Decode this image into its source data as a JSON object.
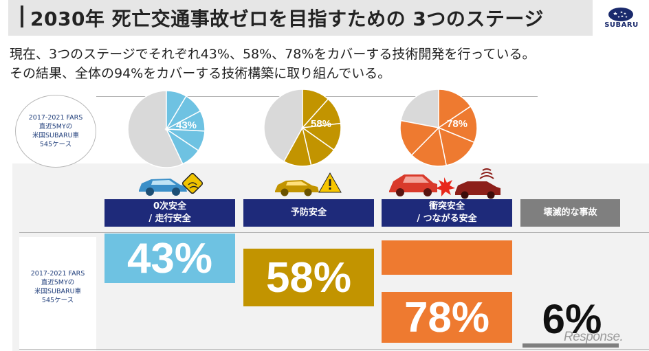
{
  "header": {
    "title": "2030年 死亡交通事故ゼロを目指すための 3つのステージ",
    "logo_text": "SUBARU"
  },
  "intro": {
    "line1": "現在、3つのステージでそれぞれ43%、58%、78%をカバーする技術開発を行っている。",
    "line2": "その結果、全体の94%をカバーする技術構築に取り組んでいる。"
  },
  "source_note": "2017-2021 FARS\n直近5MYの\n米国SUBARU車\n545ケース",
  "colors": {
    "stage_header": "#1e2a7a",
    "gray_header": "#7f7f7f",
    "blue": "#6ec2e2",
    "gold": "#c29400",
    "orange": "#ee7a30",
    "pie_gray": "#d9d9d9"
  },
  "pies": [
    {
      "label": "43%",
      "color": "#6ec2e2",
      "share": 0.43
    },
    {
      "label": "58%",
      "color": "#c29400",
      "share": 0.58
    },
    {
      "label": "78%",
      "color": "#ee7a30",
      "share": 0.78
    }
  ],
  "stages": [
    {
      "label": "0次安全\n/ 走行安全",
      "value": "43%"
    },
    {
      "label": "予防安全",
      "value": "58%"
    },
    {
      "label": "衝突安全\n/ つながる安全",
      "value": "78%"
    },
    {
      "label": "壊滅的な事故",
      "value": "6%"
    }
  ],
  "icons": [
    "car-slip-icon",
    "car-warning-icon",
    "car-collision-icon"
  ],
  "watermark": "Response."
}
